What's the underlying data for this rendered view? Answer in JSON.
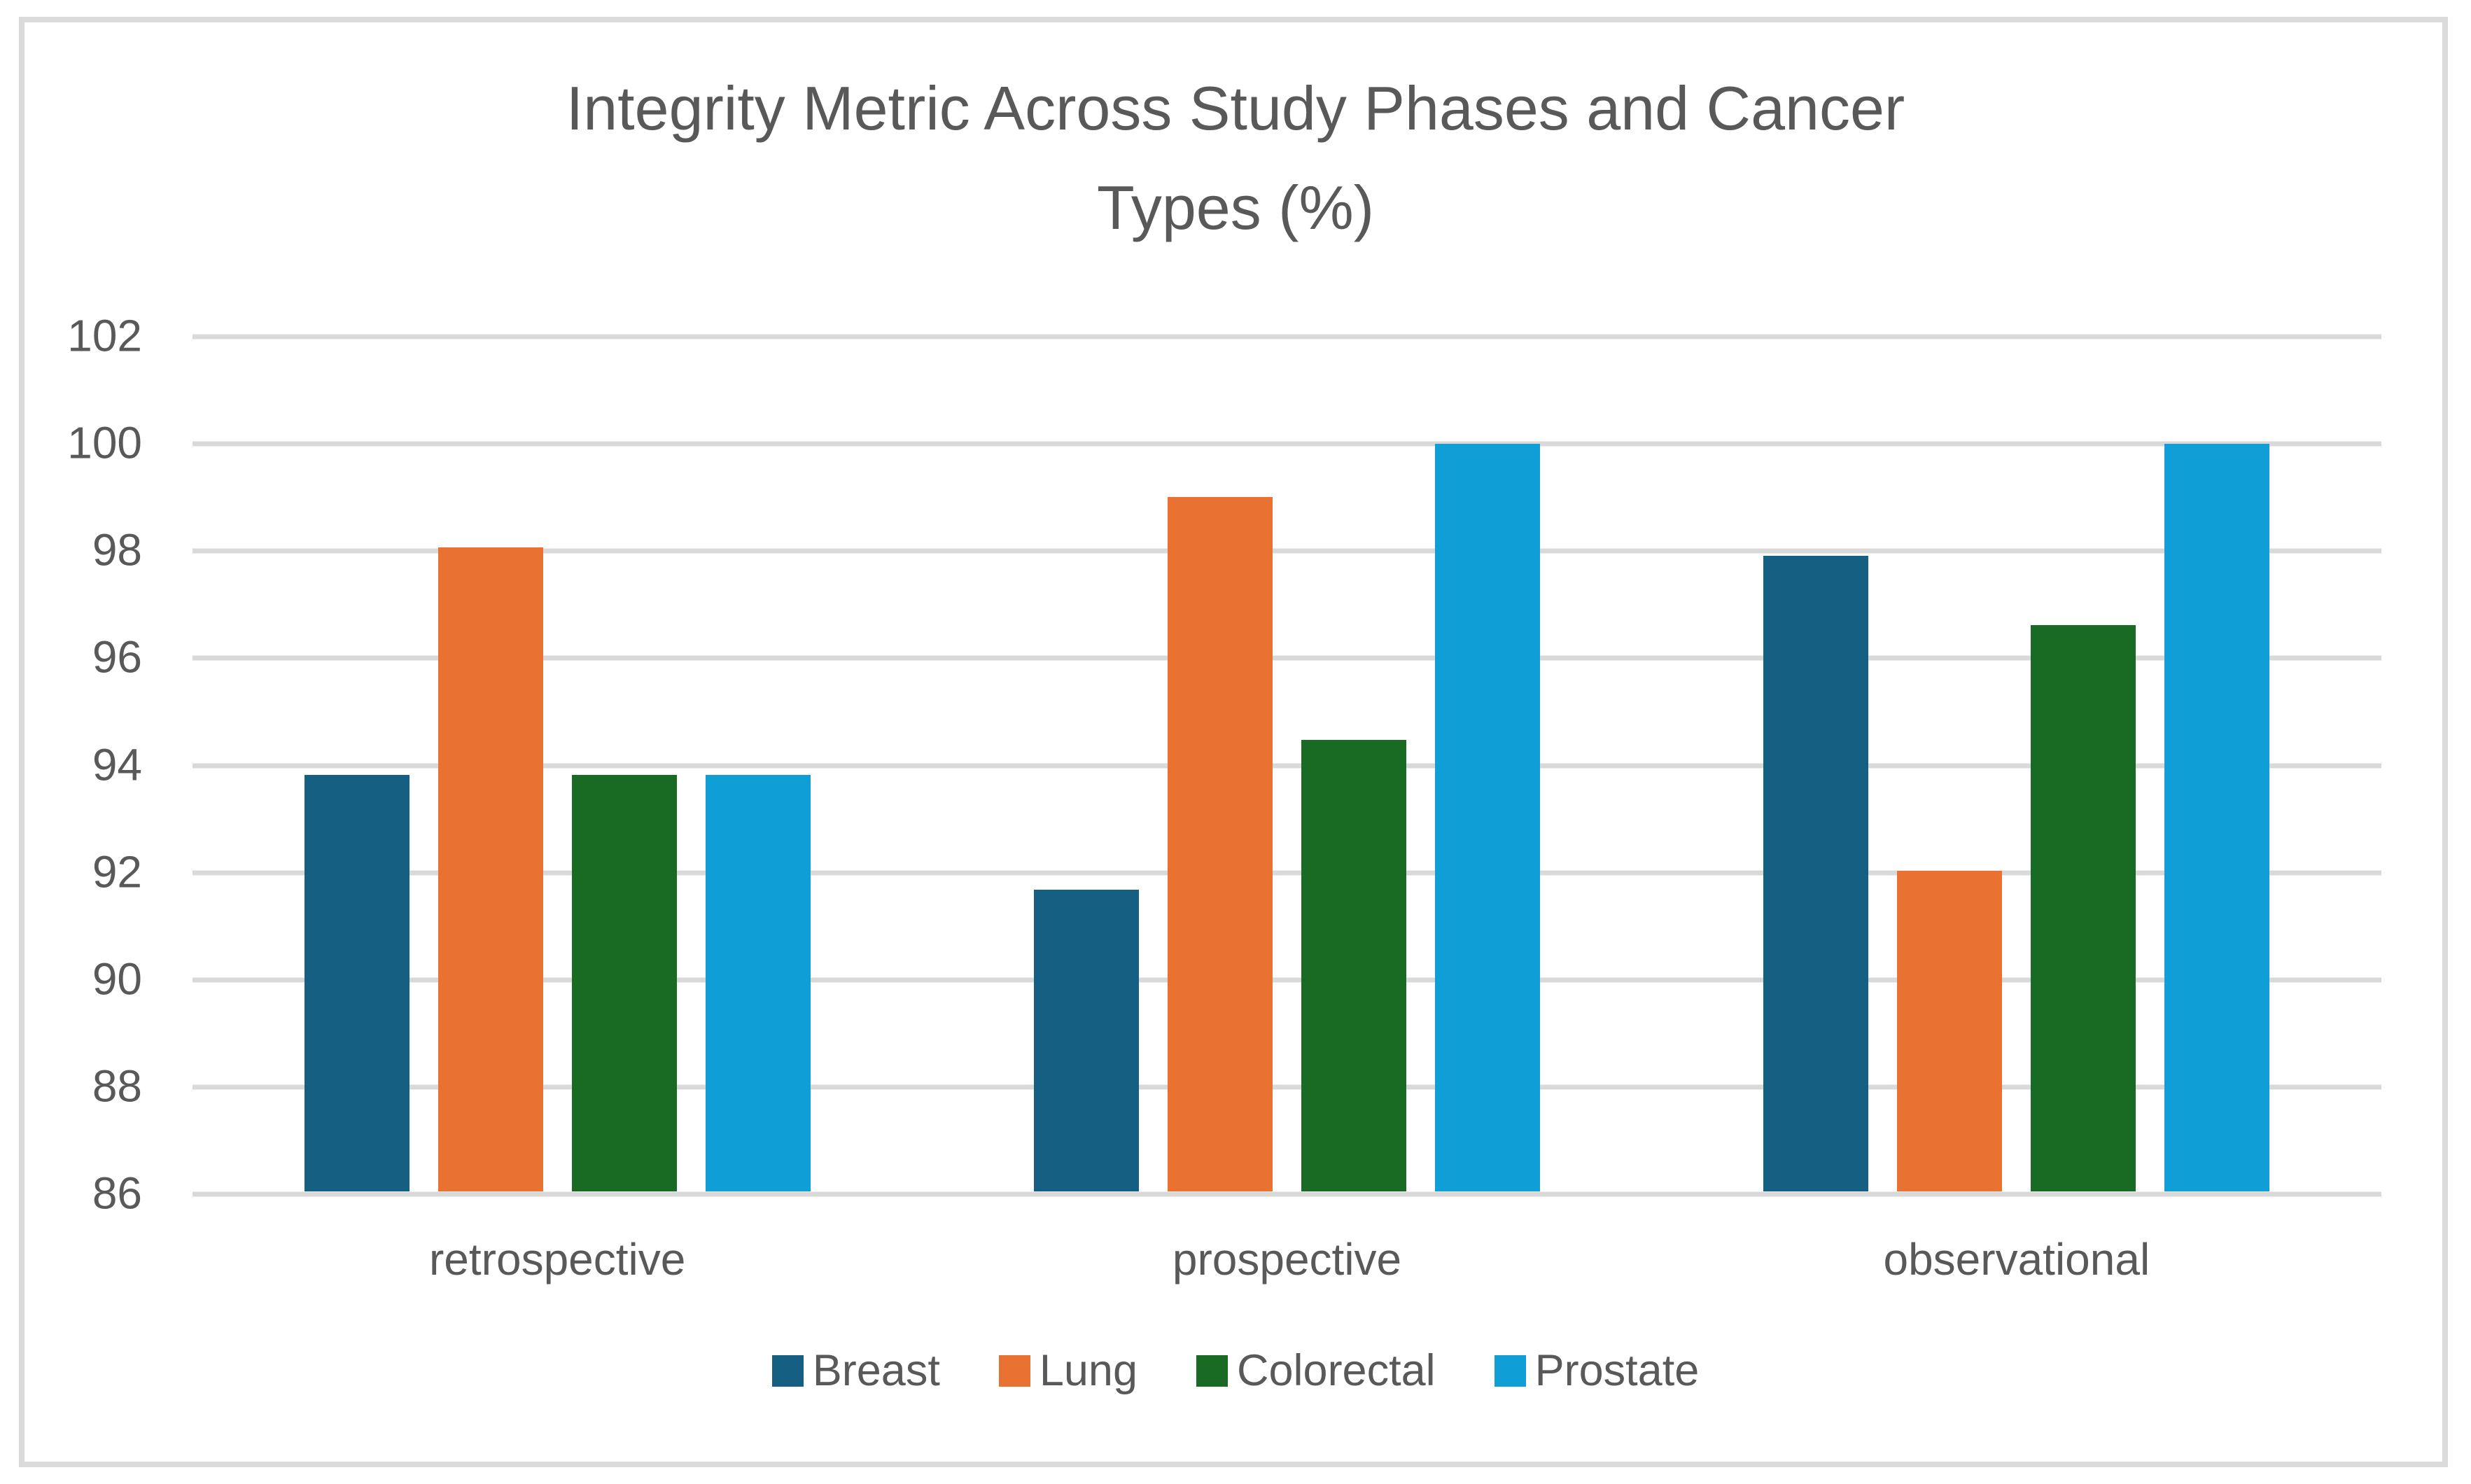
{
  "frame": {
    "border_color": "#DBDBDB",
    "background_color": "#FFFFFF"
  },
  "title_lines": [
    "Integrity Metric Across Study Phases and Cancer",
    "Types (%)"
  ],
  "chart_data": {
    "type": "bar",
    "title": "Integrity Metric Across Study Phases and Cancer Types (%)",
    "categories": [
      "retrospective",
      "prospective",
      "observational"
    ],
    "series": [
      {
        "name": "Breast",
        "color": "#156082",
        "values": [
          93.8,
          91.65,
          97.9
        ]
      },
      {
        "name": "Lung",
        "color": "#E97132",
        "values": [
          98.05,
          99.0,
          92.0
        ]
      },
      {
        "name": "Colorectal",
        "color": "#196B24",
        "values": [
          93.8,
          94.45,
          96.6
        ]
      },
      {
        "name": "Prostate",
        "color": "#0F9ED5",
        "values": [
          93.8,
          100.0,
          100.0
        ]
      }
    ],
    "y_axis": {
      "min": 86,
      "max": 102,
      "step": 2,
      "tick_labels": [
        "102",
        "100",
        "98",
        "96",
        "94",
        "92",
        "90",
        "88",
        "86"
      ]
    },
    "xlabel": "",
    "ylabel": "",
    "grid": true,
    "gridline_color": "#D9D9D9",
    "text_color": "#595959",
    "legend_position": "bottom"
  }
}
